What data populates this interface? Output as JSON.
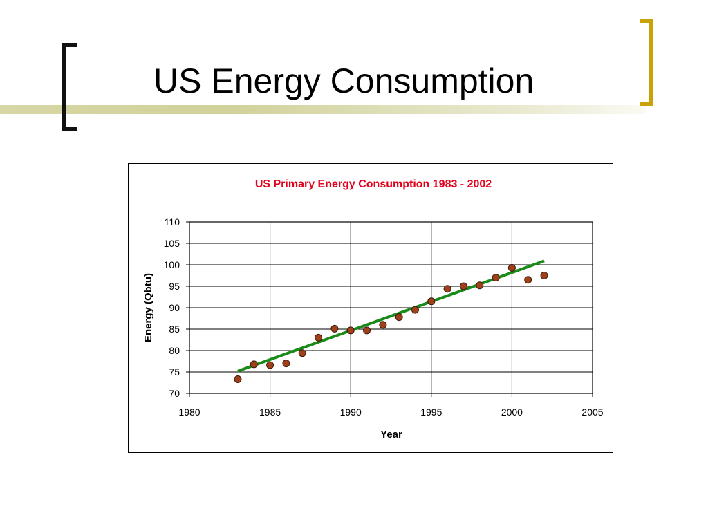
{
  "slide": {
    "title": "US Energy Consumption"
  },
  "colors": {
    "accent_gold": "#c9a20a",
    "bracket_dark": "#111111",
    "chart_title": "#e3001b",
    "trend_line": "#1a8a1a",
    "points_fill": "#a0401a"
  },
  "chart_data": {
    "type": "scatter",
    "title": "US Primary Energy Consumption 1983 - 2002",
    "xlabel": "Year",
    "ylabel": "Energy (Qbtu)",
    "xlim": [
      1980,
      2005
    ],
    "ylim": [
      70,
      110
    ],
    "xticks": [
      1980,
      1985,
      1990,
      1995,
      2000,
      2005
    ],
    "yticks": [
      70,
      75,
      80,
      85,
      90,
      95,
      100,
      105,
      110
    ],
    "grid": true,
    "legend": "none",
    "series": [
      {
        "x": [
          1983,
          1984,
          1985,
          1986,
          1987,
          1988,
          1989,
          1990,
          1991,
          1992,
          1993,
          1994,
          1995,
          1996,
          1997,
          1998,
          1999,
          2000,
          2001,
          2002
        ],
        "y": [
          73.3,
          76.8,
          76.6,
          77.0,
          79.4,
          83.0,
          85.1,
          84.7,
          84.7,
          86.0,
          87.8,
          89.5,
          91.5,
          94.4,
          95.0,
          95.2,
          97.0,
          99.3,
          96.5,
          97.5
        ]
      }
    ],
    "trendline": {
      "x": [
        1983,
        2002
      ],
      "y": [
        75.2,
        100.9
      ]
    }
  }
}
